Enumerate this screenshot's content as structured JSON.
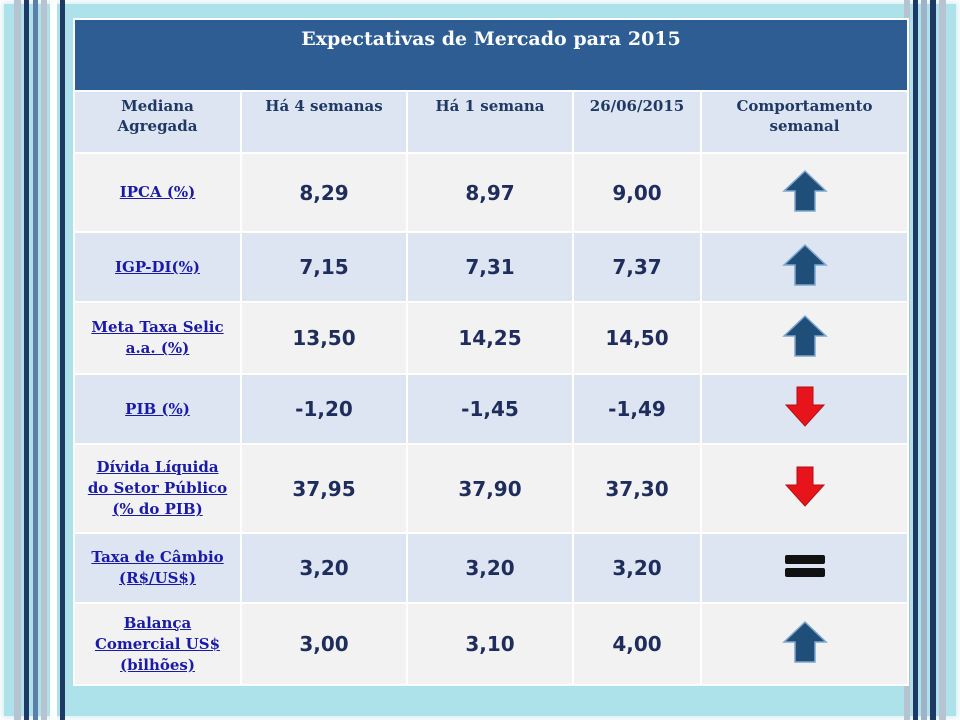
{
  "title": "Expectativas de Mercado para 2015",
  "headers": {
    "col0": [
      "Mediana",
      "Agregada"
    ],
    "col1": "Há 4 semanas",
    "col2": "Há 1 semana",
    "col3": "26/06/2015",
    "col4": [
      "Comportamento",
      "semanal"
    ]
  },
  "rows": [
    {
      "label": [
        "IPCA (%)"
      ],
      "v4": "8,29",
      "v1": "8,97",
      "vd": "9,00",
      "trend": "up-arrow-icon"
    },
    {
      "label": [
        "IGP-DI(%)"
      ],
      "v4": "7,15",
      "v1": "7,31",
      "vd": "7,37",
      "trend": "up-arrow-icon"
    },
    {
      "label": [
        "Meta Taxa Selic",
        "a.a. (%)"
      ],
      "v4": "13,50",
      "v1": "14,25",
      "vd": "14,50",
      "trend": "up-arrow-icon"
    },
    {
      "label": [
        "PIB (%)"
      ],
      "v4": "-1,20",
      "v1": "-1,45",
      "vd": "-1,49",
      "trend": "down-arrow-icon"
    },
    {
      "label": [
        "Dívida Líquida",
        "do Setor Público",
        "(% do PIB)"
      ],
      "v4": "37,95",
      "v1": "37,90",
      "vd": "37,30",
      "trend": "down-arrow-icon"
    },
    {
      "label": [
        "Taxa de Câmbio",
        "(R$/US$)"
      ],
      "v4": "3,20",
      "v1": "3,20",
      "vd": "3,20",
      "trend": "equal-icon"
    },
    {
      "label": [
        "Balança",
        "Comercial US$",
        "(bilhões)"
      ],
      "v4": "3,00",
      "v1": "3,10",
      "vd": "4,00",
      "trend": "up-arrow-icon"
    }
  ],
  "colors": {
    "title_bg": "#2e5d93",
    "header_bg": "#dce5f1",
    "row_light": "#f2f2f2",
    "row_blue": "#dce5f1",
    "up_arrow": "#1f4e79",
    "down_arrow": "#e8141b",
    "equal": "#111111"
  }
}
